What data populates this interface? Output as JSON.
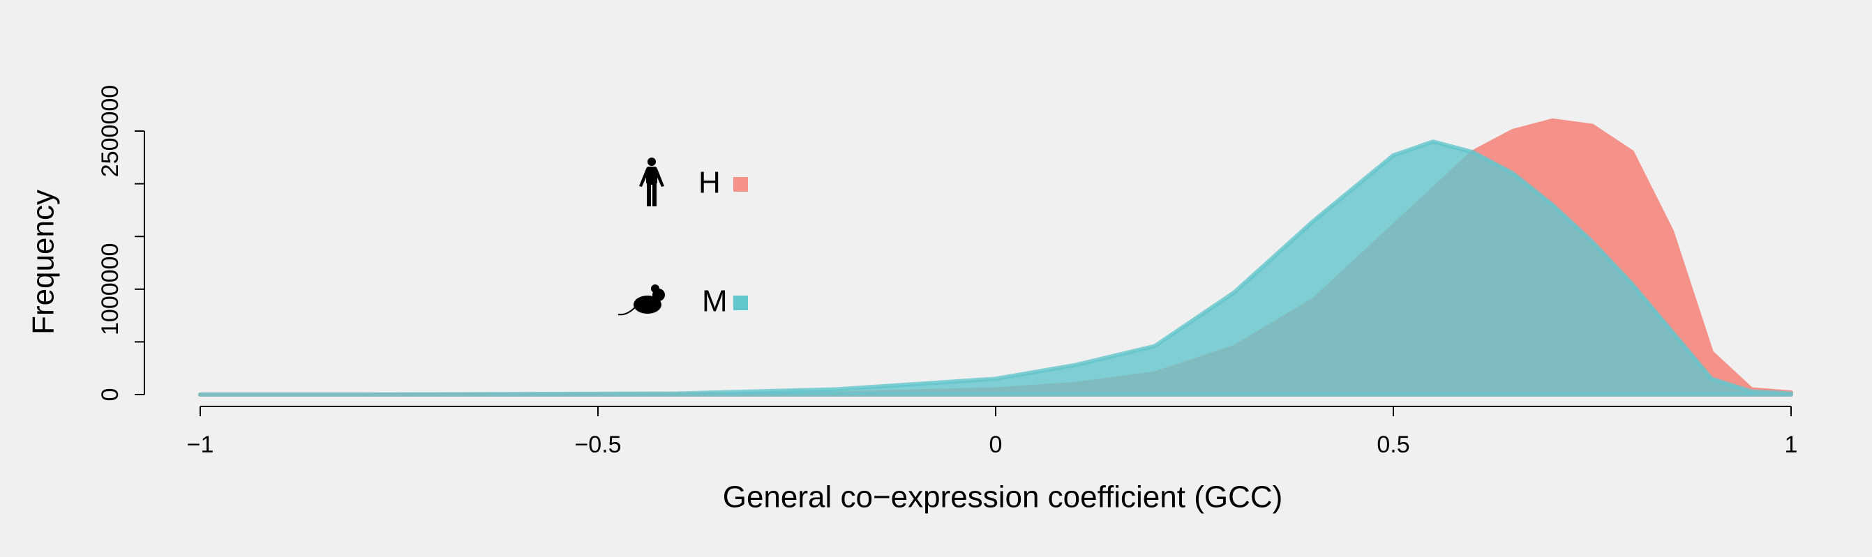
{
  "chart_data": {
    "type": "area",
    "xlabel": "General co−expression coefficient (GCC)",
    "ylabel": "Frequency",
    "x": [
      -1,
      -0.8,
      -0.6,
      -0.4,
      -0.2,
      0,
      0.1,
      0.2,
      0.3,
      0.4,
      0.5,
      0.55,
      0.6,
      0.65,
      0.7,
      0.75,
      0.8,
      0.85,
      0.9,
      0.95,
      1
    ],
    "series": [
      {
        "name": "H",
        "color": "#f4928a",
        "values": [
          0,
          0,
          0,
          2000,
          8000,
          50000,
          100000,
          200000,
          450000,
          900000,
          1600000,
          1950000,
          2300000,
          2500000,
          2600000,
          2550000,
          2300000,
          1550000,
          400000,
          50000,
          20000
        ]
      },
      {
        "name": "M",
        "color": "#63c6cc",
        "values": [
          0,
          0,
          5000,
          10000,
          50000,
          150000,
          280000,
          460000,
          970000,
          1650000,
          2270000,
          2400000,
          2300000,
          2100000,
          1800000,
          1450000,
          1050000,
          600000,
          150000,
          30000,
          10000
        ]
      }
    ],
    "xlim": [
      -1,
      1
    ],
    "xticks": [
      {
        "value": -1,
        "label": "−1"
      },
      {
        "value": -0.5,
        "label": "−0.5"
      },
      0,
      0.5,
      1
    ],
    "ylim": [
      0,
      2500000
    ],
    "yticks": [
      0,
      1000000,
      2500000
    ],
    "yminor_ticks": [
      500000,
      1500000,
      2000000
    ]
  }
}
